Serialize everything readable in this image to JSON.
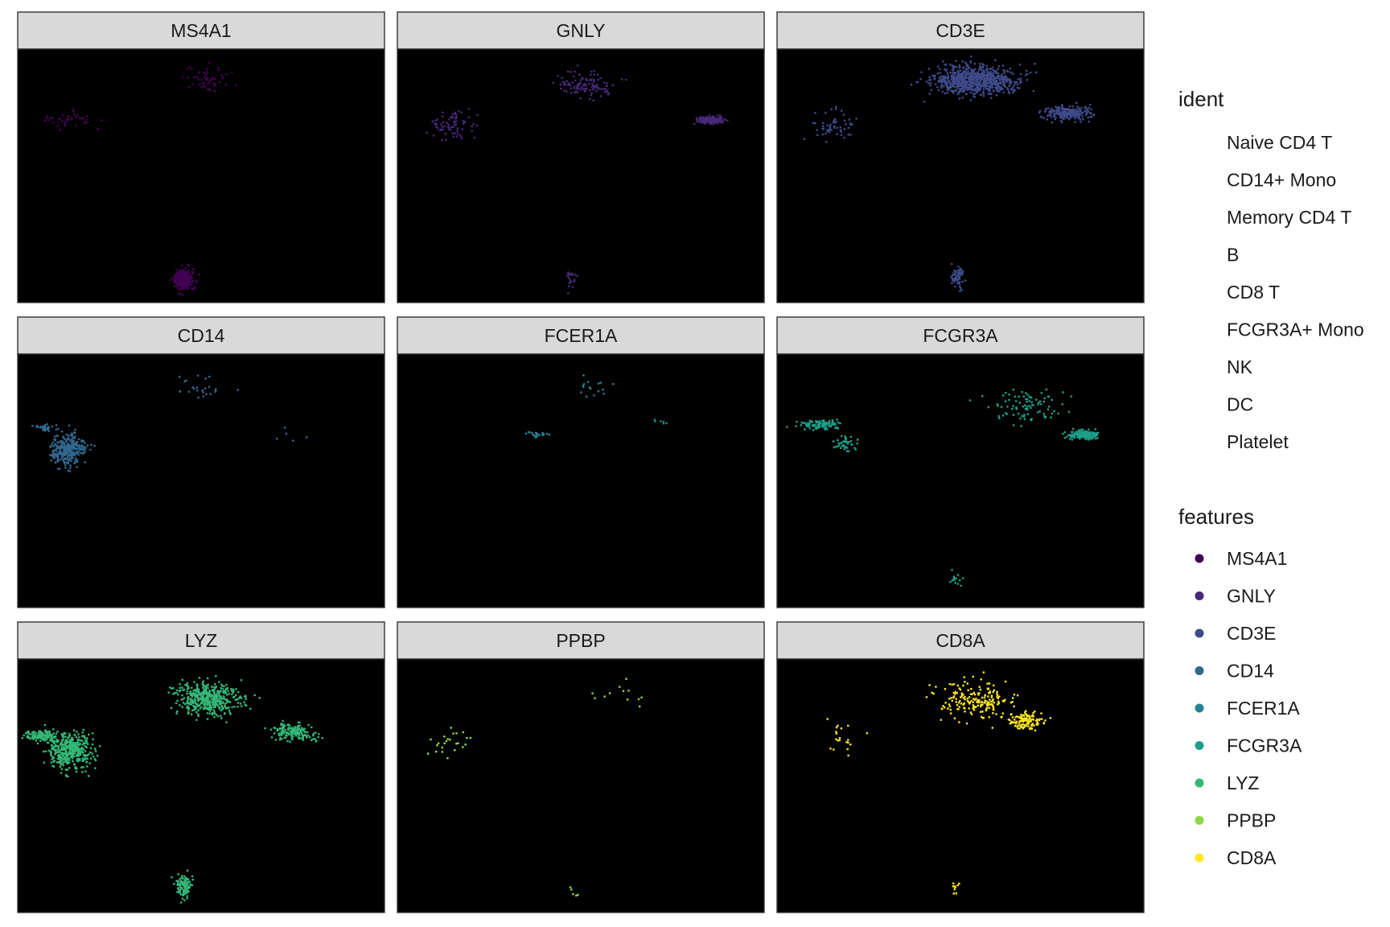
{
  "chart_data": {
    "type": "scatter",
    "layout": "facet-grid",
    "background": "#000000",
    "strip_background": "#d9d9d9",
    "x_range": [
      -6,
      14
    ],
    "y_range": [
      -12,
      9
    ],
    "panels": [
      {
        "feature": "MS4A1",
        "color": "#440154",
        "clusters": [
          {
            "cx": 4.4,
            "cy": 6.5,
            "sx": 1.1,
            "sy": 0.9,
            "n": 55
          },
          {
            "cx": -3.3,
            "cy": 3.3,
            "sx": 1.1,
            "sy": 0.6,
            "n": 40
          },
          {
            "cx": 3.0,
            "cy": -10.0,
            "sx": 0.4,
            "sy": 0.7,
            "n": 280
          }
        ]
      },
      {
        "feature": "GNLY",
        "color": "#482878",
        "clusters": [
          {
            "cx": 4.2,
            "cy": 6.2,
            "sx": 1.5,
            "sy": 0.9,
            "n": 110
          },
          {
            "cx": 11.0,
            "cy": 3.2,
            "sx": 0.6,
            "sy": 0.25,
            "n": 170
          },
          {
            "cx": -3.0,
            "cy": 2.8,
            "sx": 1.0,
            "sy": 0.9,
            "n": 75
          },
          {
            "cx": 3.4,
            "cy": -9.8,
            "sx": 0.3,
            "sy": 0.8,
            "n": 20
          }
        ]
      },
      {
        "feature": "CD3E",
        "color": "#3e4a89",
        "clusters": [
          {
            "cx": 4.8,
            "cy": 6.5,
            "sx": 1.8,
            "sy": 1.0,
            "n": 800
          },
          {
            "cx": 9.8,
            "cy": 3.8,
            "sx": 1.1,
            "sy": 0.5,
            "n": 220
          },
          {
            "cx": -3.0,
            "cy": 2.7,
            "sx": 1.0,
            "sy": 1.0,
            "n": 55
          },
          {
            "cx": 3.8,
            "cy": -9.8,
            "sx": 0.3,
            "sy": 0.8,
            "n": 60
          }
        ]
      },
      {
        "feature": "CD14",
        "color": "#31688e",
        "clusters": [
          {
            "cx": -3.3,
            "cy": 1.2,
            "sx": 0.7,
            "sy": 1.1,
            "n": 330
          },
          {
            "cx": -4.5,
            "cy": 3.0,
            "sx": 0.6,
            "sy": 0.2,
            "n": 30
          },
          {
            "cx": 3.8,
            "cy": 6.5,
            "sx": 1.3,
            "sy": 0.8,
            "n": 25
          },
          {
            "cx": 9.0,
            "cy": 2.3,
            "sx": 0.8,
            "sy": 0.5,
            "n": 5
          }
        ]
      },
      {
        "feature": "FCER1A",
        "color": "#26828e",
        "clusters": [
          {
            "cx": 1.5,
            "cy": 2.4,
            "sx": 0.5,
            "sy": 0.2,
            "n": 22
          },
          {
            "cx": 4.6,
            "cy": 6.2,
            "sx": 0.8,
            "sy": 1.0,
            "n": 16
          },
          {
            "cx": 8.5,
            "cy": 3.5,
            "sx": 0.9,
            "sy": 0.4,
            "n": 6
          }
        ]
      },
      {
        "feature": "FCGR3A",
        "color": "#1f9e89",
        "clusters": [
          {
            "cx": 10.7,
            "cy": 2.4,
            "sx": 0.6,
            "sy": 0.3,
            "n": 210
          },
          {
            "cx": 7.5,
            "cy": 4.8,
            "sx": 1.5,
            "sy": 1.3,
            "n": 90
          },
          {
            "cx": -3.7,
            "cy": 3.2,
            "sx": 0.9,
            "sy": 0.3,
            "n": 100
          },
          {
            "cx": -2.4,
            "cy": 1.6,
            "sx": 0.6,
            "sy": 0.6,
            "n": 40
          },
          {
            "cx": 3.7,
            "cy": -9.7,
            "sx": 0.3,
            "sy": 0.6,
            "n": 14
          }
        ]
      },
      {
        "feature": "LYZ",
        "color": "#35b779",
        "clusters": [
          {
            "cx": -3.2,
            "cy": 1.5,
            "sx": 1.0,
            "sy": 1.2,
            "n": 420
          },
          {
            "cx": -4.8,
            "cy": 2.7,
            "sx": 0.7,
            "sy": 0.4,
            "n": 120
          },
          {
            "cx": 4.3,
            "cy": 5.8,
            "sx": 1.4,
            "sy": 1.1,
            "n": 480
          },
          {
            "cx": 9.0,
            "cy": 3.0,
            "sx": 1.0,
            "sy": 0.6,
            "n": 160
          },
          {
            "cx": 3.0,
            "cy": -9.8,
            "sx": 0.4,
            "sy": 0.8,
            "n": 110
          }
        ]
      },
      {
        "feature": "PPBP",
        "color": "#8fd744",
        "clusters": [
          {
            "cx": -3.0,
            "cy": 2.2,
            "sx": 1.0,
            "sy": 1.1,
            "n": 24
          },
          {
            "cx": 6.0,
            "cy": 6.2,
            "sx": 1.6,
            "sy": 1.0,
            "n": 12
          },
          {
            "cx": 3.6,
            "cy": -9.9,
            "sx": 0.4,
            "sy": 0.6,
            "n": 5
          }
        ]
      },
      {
        "feature": "CD8A",
        "color": "#fde725",
        "clusters": [
          {
            "cx": 4.8,
            "cy": 5.5,
            "sx": 1.7,
            "sy": 1.3,
            "n": 190
          },
          {
            "cx": 7.5,
            "cy": 4.0,
            "sx": 0.8,
            "sy": 0.6,
            "n": 110
          },
          {
            "cx": -2.6,
            "cy": 2.5,
            "sx": 1.0,
            "sy": 0.9,
            "n": 20
          },
          {
            "cx": 3.6,
            "cy": -9.8,
            "sx": 0.3,
            "sy": 0.6,
            "n": 9
          }
        ]
      }
    ],
    "legend": {
      "ident": {
        "title": "ident",
        "items": [
          "Naive CD4 T",
          "CD14+ Mono",
          "Memory CD4 T",
          "B",
          "CD8 T",
          "FCGR3A+ Mono",
          "NK",
          "DC",
          "Platelet"
        ]
      },
      "features": {
        "title": "features",
        "items": [
          {
            "label": "MS4A1",
            "color": "#440154"
          },
          {
            "label": "GNLY",
            "color": "#482878"
          },
          {
            "label": "CD3E",
            "color": "#3e4a89"
          },
          {
            "label": "CD14",
            "color": "#31688e"
          },
          {
            "label": "FCER1A",
            "color": "#26828e"
          },
          {
            "label": "FCGR3A",
            "color": "#1f9e89"
          },
          {
            "label": "LYZ",
            "color": "#35b779"
          },
          {
            "label": "PPBP",
            "color": "#8fd744"
          },
          {
            "label": "CD8A",
            "color": "#fde725"
          }
        ]
      }
    }
  }
}
